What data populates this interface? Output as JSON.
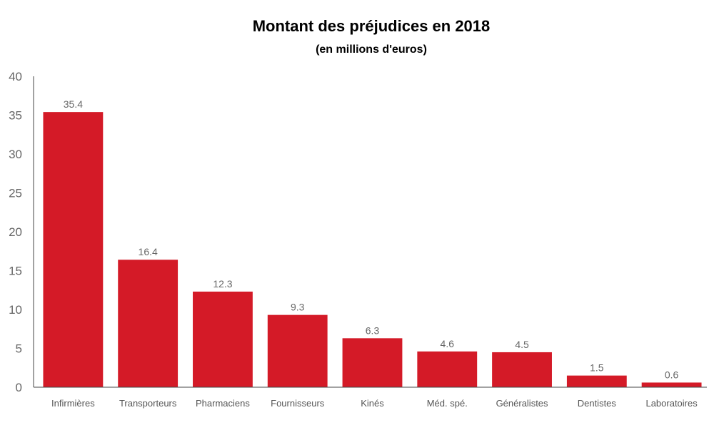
{
  "chart_data": {
    "type": "bar",
    "title": "Montant des préjudices en 2018",
    "subtitle": "(en millions d'euros)",
    "xlabel": "",
    "ylabel": "",
    "ylim": [
      0,
      40
    ],
    "yticks": [
      0,
      5,
      10,
      15,
      20,
      25,
      30,
      35,
      40
    ],
    "categories": [
      "Infirmières",
      "Transporteurs",
      "Pharmaciens",
      "Fournisseurs",
      "Kinés",
      "Méd. spé.",
      "Généralistes",
      "Dentistes",
      "Laboratoires"
    ],
    "values": [
      35.4,
      16.4,
      12.3,
      9.3,
      6.3,
      4.6,
      4.5,
      1.5,
      0.6
    ],
    "value_labels": [
      "35.4",
      "16.4",
      "12.3",
      "9.3",
      "6.3",
      "4.6",
      "4.5",
      "1.5",
      "0.6"
    ],
    "bar_color": "#d41a27",
    "grid": false,
    "legend": "none"
  }
}
